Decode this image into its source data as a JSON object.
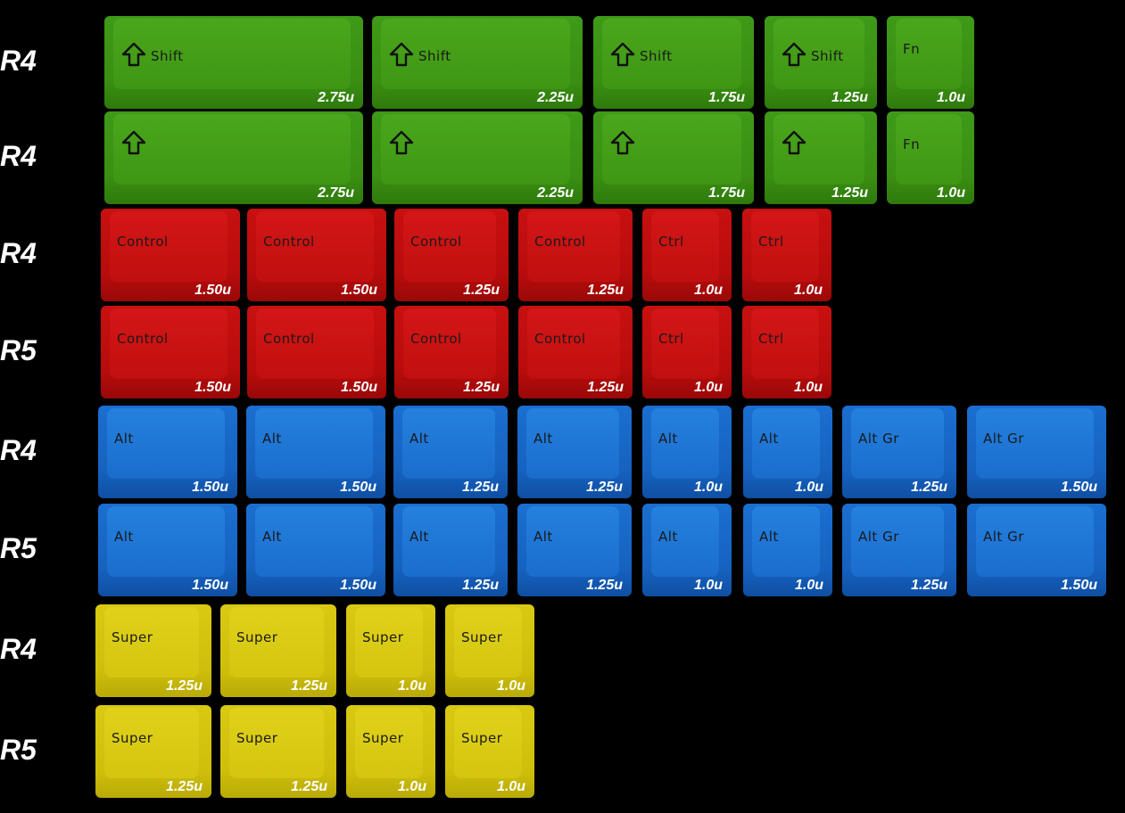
{
  "rows": [
    {
      "label": "R4",
      "color": "green",
      "keys": [
        {
          "legend": "Shift",
          "arrow": true,
          "size": "2.75u"
        },
        {
          "legend": "Shift",
          "arrow": true,
          "size": "2.25u"
        },
        {
          "legend": "Shift",
          "arrow": true,
          "size": "1.75u"
        },
        {
          "legend": "Shift",
          "arrow": true,
          "size": "1.25u"
        },
        {
          "legend": "Fn",
          "arrow": false,
          "size": "1.0u"
        }
      ]
    },
    {
      "label": "R4",
      "color": "green",
      "keys": [
        {
          "legend": "",
          "arrow": true,
          "size": "2.75u"
        },
        {
          "legend": "",
          "arrow": true,
          "size": "2.25u"
        },
        {
          "legend": "",
          "arrow": true,
          "size": "1.75u"
        },
        {
          "legend": "",
          "arrow": true,
          "size": "1.25u"
        },
        {
          "legend": "Fn",
          "arrow": false,
          "size": "1.0u"
        }
      ]
    },
    {
      "label": "R4",
      "color": "red",
      "keys": [
        {
          "legend": "Control",
          "size": "1.50u"
        },
        {
          "legend": "Control",
          "size": "1.50u"
        },
        {
          "legend": "Control",
          "size": "1.25u"
        },
        {
          "legend": "Control",
          "size": "1.25u"
        },
        {
          "legend": "Ctrl",
          "size": "1.0u"
        },
        {
          "legend": "Ctrl",
          "size": "1.0u"
        }
      ]
    },
    {
      "label": "R5",
      "color": "red",
      "keys": [
        {
          "legend": "Control",
          "size": "1.50u"
        },
        {
          "legend": "Control",
          "size": "1.50u"
        },
        {
          "legend": "Control",
          "size": "1.25u"
        },
        {
          "legend": "Control",
          "size": "1.25u"
        },
        {
          "legend": "Ctrl",
          "size": "1.0u"
        },
        {
          "legend": "Ctrl",
          "size": "1.0u"
        }
      ]
    },
    {
      "label": "R4",
      "color": "blue",
      "keys": [
        {
          "legend": "Alt",
          "size": "1.50u"
        },
        {
          "legend": "Alt",
          "size": "1.50u"
        },
        {
          "legend": "Alt",
          "size": "1.25u"
        },
        {
          "legend": "Alt",
          "size": "1.25u"
        },
        {
          "legend": "Alt",
          "size": "1.0u"
        },
        {
          "legend": "Alt",
          "size": "1.0u"
        },
        {
          "legend": "Alt Gr",
          "size": "1.25u"
        },
        {
          "legend": "Alt Gr",
          "size": "1.50u"
        }
      ]
    },
    {
      "label": "R5",
      "color": "blue",
      "keys": [
        {
          "legend": "Alt",
          "size": "1.50u"
        },
        {
          "legend": "Alt",
          "size": "1.50u"
        },
        {
          "legend": "Alt",
          "size": "1.25u"
        },
        {
          "legend": "Alt",
          "size": "1.25u"
        },
        {
          "legend": "Alt",
          "size": "1.0u"
        },
        {
          "legend": "Alt",
          "size": "1.0u"
        },
        {
          "legend": "Alt Gr",
          "size": "1.25u"
        },
        {
          "legend": "Alt Gr",
          "size": "1.50u"
        }
      ]
    },
    {
      "label": "R4",
      "color": "yellow",
      "keys": [
        {
          "legend": "Super",
          "size": "1.25u"
        },
        {
          "legend": "Super",
          "size": "1.25u"
        },
        {
          "legend": "Super",
          "size": "1.0u"
        },
        {
          "legend": "Super",
          "size": "1.0u"
        }
      ]
    },
    {
      "label": "R5",
      "color": "yellow",
      "keys": [
        {
          "legend": "Super",
          "size": "1.25u"
        },
        {
          "legend": "Super",
          "size": "1.25u"
        },
        {
          "legend": "Super",
          "size": "1.0u"
        },
        {
          "legend": "Super",
          "size": "1.0u"
        }
      ]
    }
  ]
}
